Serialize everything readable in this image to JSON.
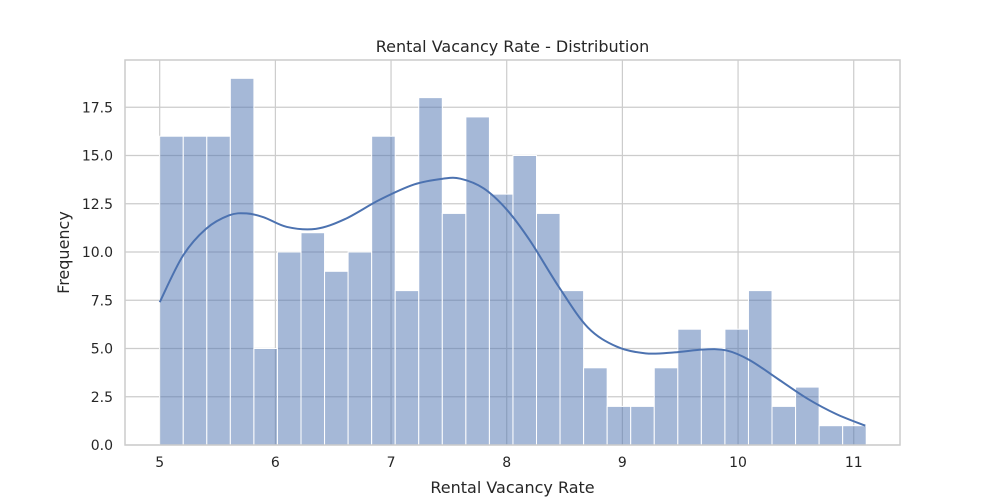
{
  "chart_data": {
    "type": "bar",
    "title": "Rental Vacancy Rate - Distribution",
    "xlabel": "Rental Vacancy Rate",
    "ylabel": "Frequency",
    "xlim": [
      4.7,
      11.4
    ],
    "ylim": [
      0,
      19.95
    ],
    "x_ticks": [
      5,
      6,
      7,
      8,
      9,
      10,
      11
    ],
    "y_ticks": [
      0,
      2.5,
      5,
      7.5,
      10,
      12.5,
      15,
      17.5
    ],
    "y_tick_labels": [
      "0.0",
      "2.5",
      "5.0",
      "7.5",
      "10.0",
      "12.5",
      "15.0",
      "17.5"
    ],
    "grid": true,
    "bins": {
      "start": 5.0,
      "width": 0.2036,
      "counts": [
        16,
        16,
        16,
        19,
        5,
        10,
        11,
        9,
        10,
        16,
        8,
        18,
        12,
        17,
        13,
        15,
        12,
        8,
        4,
        2,
        2,
        4,
        6,
        5,
        6,
        8,
        2,
        3,
        1,
        1
      ]
    },
    "kde": {
      "x": [
        5.0,
        5.2,
        5.4,
        5.6,
        5.75,
        5.9,
        6.1,
        6.35,
        6.6,
        6.9,
        7.2,
        7.45,
        7.6,
        7.8,
        8.0,
        8.2,
        8.45,
        8.7,
        8.95,
        9.2,
        9.45,
        9.7,
        9.9,
        10.1,
        10.35,
        10.6,
        10.85,
        11.1
      ],
      "y": [
        7.4,
        9.8,
        11.2,
        11.9,
        12.0,
        11.8,
        11.3,
        11.2,
        11.7,
        12.7,
        13.5,
        13.8,
        13.8,
        13.3,
        12.2,
        10.6,
        8.2,
        6.1,
        5.1,
        4.75,
        4.8,
        4.95,
        4.9,
        4.4,
        3.4,
        2.4,
        1.6,
        1.0
      ]
    },
    "colors": {
      "bar": "#4c72b0",
      "line": "#4c72b0",
      "grid": "#cccccc"
    }
  }
}
